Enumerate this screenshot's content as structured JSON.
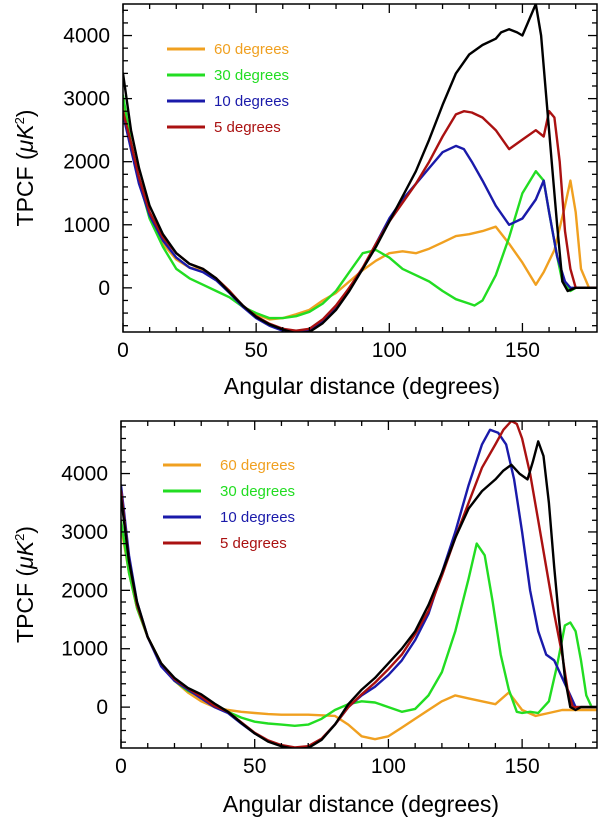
{
  "figure": {
    "description_panels": 2
  },
  "chart_data": [
    {
      "type": "line",
      "title": "",
      "xlabel": "Angular distance (degrees)",
      "ylabel": "TPCF (",
      "ylabel_unit": "μK",
      "ylabel_unit_power": "2",
      "ylabel_close": ")",
      "xlim": [
        0,
        178
      ],
      "ylim": [
        -700,
        4500
      ],
      "xticks": [
        0,
        50,
        100,
        150
      ],
      "yticks": [
        0,
        1000,
        2000,
        3000,
        4000
      ],
      "legend_position": "top-left",
      "legend": [
        {
          "label": "60 degrees",
          "color": "#f0a020"
        },
        {
          "label": "30 degrees",
          "color": "#22dd22"
        },
        {
          "label": "10 degrees",
          "color": "#1a1aaa"
        },
        {
          "label": "5 degrees",
          "color": "#aa1111"
        }
      ],
      "series": [
        {
          "name": "60 degrees",
          "color": "#f0a020",
          "x": [
            0,
            3,
            6,
            10,
            15,
            20,
            25,
            30,
            35,
            40,
            45,
            50,
            55,
            60,
            65,
            70,
            75,
            80,
            85,
            90,
            95,
            100,
            105,
            110,
            115,
            120,
            125,
            130,
            135,
            140,
            145,
            150,
            155,
            158,
            162,
            166,
            168,
            170,
            172,
            175,
            178
          ],
          "y": [
            2900,
            2200,
            1700,
            1150,
            700,
            450,
            320,
            280,
            150,
            -50,
            -300,
            -420,
            -500,
            -480,
            -420,
            -350,
            -200,
            -80,
            100,
            280,
            430,
            550,
            580,
            550,
            620,
            720,
            820,
            850,
            900,
            970,
            700,
            400,
            50,
            250,
            600,
            1300,
            1700,
            1200,
            300,
            0,
            0
          ]
        },
        {
          "name": "30 degrees",
          "color": "#22dd22",
          "x": [
            0,
            3,
            6,
            10,
            15,
            20,
            25,
            30,
            35,
            40,
            45,
            50,
            55,
            60,
            65,
            70,
            75,
            80,
            85,
            90,
            95,
            100,
            105,
            110,
            115,
            120,
            125,
            130,
            132,
            135,
            140,
            145,
            150,
            155,
            158,
            160,
            163,
            165,
            168,
            170,
            172,
            175,
            178
          ],
          "y": [
            3050,
            2300,
            1700,
            1100,
            650,
            300,
            150,
            50,
            -50,
            -150,
            -300,
            -400,
            -480,
            -480,
            -450,
            -380,
            -250,
            -50,
            250,
            550,
            600,
            480,
            300,
            200,
            100,
            -50,
            -180,
            -250,
            -280,
            -200,
            200,
            800,
            1500,
            1850,
            1700,
            1200,
            500,
            100,
            -50,
            0,
            0,
            0,
            0
          ]
        },
        {
          "name": "10 degrees",
          "color": "#1a1aaa",
          "x": [
            0,
            3,
            6,
            10,
            15,
            20,
            25,
            30,
            35,
            40,
            45,
            50,
            55,
            60,
            65,
            70,
            75,
            80,
            85,
            90,
            95,
            100,
            105,
            110,
            115,
            120,
            125,
            128,
            131,
            135,
            140,
            145,
            150,
            155,
            158,
            160,
            163,
            166,
            168,
            170,
            172,
            175,
            178
          ],
          "y": [
            2750,
            2200,
            1650,
            1150,
            750,
            480,
            320,
            250,
            120,
            -80,
            -300,
            -480,
            -600,
            -680,
            -710,
            -680,
            -520,
            -300,
            0,
            300,
            700,
            1100,
            1400,
            1650,
            1900,
            2150,
            2250,
            2200,
            2000,
            1700,
            1300,
            1000,
            1100,
            1400,
            1700,
            1200,
            500,
            100,
            0,
            0,
            0,
            0,
            0
          ]
        },
        {
          "name": "5 degrees",
          "color": "#aa1111",
          "x": [
            0,
            3,
            6,
            10,
            15,
            20,
            25,
            30,
            35,
            40,
            45,
            50,
            55,
            60,
            65,
            70,
            75,
            80,
            85,
            90,
            95,
            100,
            105,
            110,
            115,
            120,
            125,
            128,
            131,
            135,
            140,
            145,
            150,
            155,
            158,
            160,
            162,
            164,
            166,
            168,
            170,
            172,
            175,
            178
          ],
          "y": [
            2800,
            2300,
            1750,
            1200,
            800,
            550,
            380,
            300,
            150,
            -50,
            -280,
            -450,
            -570,
            -650,
            -680,
            -650,
            -500,
            -280,
            0,
            320,
            700,
            1050,
            1350,
            1650,
            2000,
            2400,
            2750,
            2800,
            2780,
            2700,
            2500,
            2200,
            2350,
            2500,
            2400,
            2800,
            2700,
            2000,
            900,
            300,
            0,
            0,
            0,
            0
          ]
        },
        {
          "name": "black",
          "color": "#000000",
          "x": [
            0,
            3,
            6,
            10,
            15,
            20,
            25,
            30,
            35,
            40,
            45,
            50,
            55,
            60,
            65,
            70,
            75,
            80,
            85,
            90,
            95,
            100,
            105,
            110,
            115,
            120,
            125,
            130,
            135,
            140,
            142,
            145,
            148,
            150,
            152,
            155,
            157,
            159,
            161,
            163,
            165,
            167,
            170,
            172,
            175,
            178
          ],
          "y": [
            3400,
            2500,
            1900,
            1300,
            850,
            550,
            380,
            300,
            150,
            -70,
            -280,
            -460,
            -580,
            -660,
            -720,
            -700,
            -560,
            -350,
            -50,
            300,
            650,
            1050,
            1450,
            1850,
            2350,
            2900,
            3400,
            3700,
            3850,
            3950,
            4050,
            4100,
            4050,
            4000,
            4200,
            4500,
            4000,
            3000,
            2000,
            1000,
            100,
            -50,
            0,
            0,
            0,
            0
          ]
        }
      ]
    },
    {
      "type": "line",
      "title": "",
      "xlabel": "Angular distance (degrees)",
      "ylabel": "TPCF (",
      "ylabel_unit": "μK",
      "ylabel_unit_power": "2",
      "ylabel_close": ")",
      "xlim": [
        0,
        178
      ],
      "ylim": [
        -700,
        4900
      ],
      "xticks": [
        0,
        50,
        100,
        150
      ],
      "yticks": [
        0,
        1000,
        2000,
        3000,
        4000
      ],
      "legend_position": "top-left",
      "legend": [
        {
          "label": "60 degrees",
          "color": "#f0a020"
        },
        {
          "label": "30 degrees",
          "color": "#22dd22"
        },
        {
          "label": "10 degrees",
          "color": "#1a1aaa"
        },
        {
          "label": "5 degrees",
          "color": "#aa1111"
        }
      ],
      "series": [
        {
          "name": "60 degrees",
          "color": "#f0a020",
          "x": [
            0,
            3,
            6,
            10,
            15,
            20,
            25,
            30,
            35,
            40,
            45,
            50,
            55,
            60,
            65,
            70,
            75,
            80,
            85,
            90,
            95,
            100,
            105,
            110,
            115,
            120,
            125,
            130,
            135,
            140,
            145,
            150,
            155,
            160,
            165,
            170,
            175,
            178
          ],
          "y": [
            3100,
            2300,
            1700,
            1200,
            750,
            450,
            250,
            100,
            0,
            -50,
            -80,
            -100,
            -120,
            -130,
            -130,
            -130,
            -140,
            -150,
            -300,
            -500,
            -550,
            -500,
            -350,
            -200,
            -50,
            100,
            200,
            150,
            100,
            50,
            250,
            -50,
            -150,
            -100,
            -50,
            -50,
            -50,
            -50
          ]
        },
        {
          "name": "30 degrees",
          "color": "#22dd22",
          "x": [
            0,
            3,
            6,
            10,
            15,
            20,
            25,
            30,
            35,
            40,
            45,
            50,
            55,
            60,
            65,
            70,
            75,
            80,
            85,
            90,
            95,
            100,
            105,
            110,
            115,
            120,
            125,
            130,
            133,
            136,
            139,
            142,
            145,
            148,
            150,
            153,
            156,
            160,
            163,
            166,
            168,
            170,
            172,
            174,
            176,
            178
          ],
          "y": [
            3200,
            2300,
            1700,
            1200,
            750,
            450,
            280,
            180,
            50,
            -80,
            -180,
            -250,
            -280,
            -300,
            -320,
            -300,
            -200,
            -50,
            50,
            100,
            80,
            0,
            -80,
            -30,
            200,
            600,
            1300,
            2200,
            2800,
            2600,
            1800,
            900,
            300,
            -80,
            -100,
            -80,
            -100,
            100,
            700,
            1400,
            1450,
            1300,
            800,
            200,
            0,
            0
          ]
        },
        {
          "name": "10 degrees",
          "color": "#1a1aaa",
          "x": [
            0,
            3,
            6,
            10,
            15,
            20,
            25,
            30,
            35,
            40,
            45,
            50,
            55,
            60,
            65,
            70,
            75,
            80,
            85,
            90,
            95,
            100,
            105,
            110,
            115,
            120,
            125,
            130,
            135,
            138,
            141,
            144,
            147,
            150,
            153,
            156,
            159,
            162,
            165,
            168,
            170,
            172,
            175,
            178
          ],
          "y": [
            3800,
            2600,
            1800,
            1200,
            700,
            450,
            300,
            150,
            0,
            -100,
            -280,
            -450,
            -580,
            -660,
            -700,
            -680,
            -550,
            -300,
            0,
            200,
            350,
            550,
            800,
            1150,
            1600,
            2300,
            3000,
            3800,
            4500,
            4750,
            4700,
            4500,
            3900,
            3000,
            2000,
            1300,
            900,
            800,
            500,
            200,
            0,
            0,
            0,
            0
          ]
        },
        {
          "name": "5 degrees",
          "color": "#aa1111",
          "x": [
            0,
            3,
            6,
            10,
            15,
            20,
            25,
            30,
            35,
            40,
            45,
            50,
            55,
            60,
            65,
            70,
            75,
            80,
            85,
            90,
            95,
            100,
            105,
            110,
            115,
            120,
            125,
            130,
            135,
            140,
            143,
            146,
            148,
            150,
            153,
            156,
            159,
            162,
            165,
            167,
            169,
            172,
            175,
            178
          ],
          "y": [
            3700,
            2500,
            1750,
            1200,
            750,
            480,
            320,
            180,
            20,
            -80,
            -260,
            -440,
            -570,
            -650,
            -690,
            -670,
            -540,
            -300,
            0,
            220,
            420,
            650,
            900,
            1250,
            1650,
            2250,
            2900,
            3500,
            4100,
            4500,
            4750,
            4900,
            4850,
            4600,
            4000,
            3200,
            2400,
            1600,
            900,
            300,
            0,
            0,
            0,
            0
          ]
        },
        {
          "name": "black",
          "color": "#000000",
          "x": [
            0,
            3,
            6,
            10,
            15,
            20,
            25,
            30,
            35,
            40,
            45,
            50,
            55,
            60,
            65,
            70,
            75,
            80,
            85,
            90,
            95,
            100,
            105,
            110,
            115,
            120,
            125,
            130,
            135,
            140,
            143,
            146,
            149,
            152,
            154,
            156,
            158,
            160,
            162,
            164,
            166,
            168,
            170,
            172,
            175,
            178
          ],
          "y": [
            3600,
            2500,
            1800,
            1200,
            750,
            500,
            330,
            220,
            60,
            -80,
            -270,
            -450,
            -590,
            -670,
            -720,
            -700,
            -560,
            -300,
            50,
            300,
            500,
            750,
            1000,
            1300,
            1750,
            2300,
            2900,
            3400,
            3700,
            3900,
            4050,
            4150,
            4000,
            3900,
            4200,
            4550,
            4300,
            3500,
            2400,
            1400,
            500,
            0,
            -50,
            0,
            0,
            0
          ]
        }
      ]
    }
  ]
}
